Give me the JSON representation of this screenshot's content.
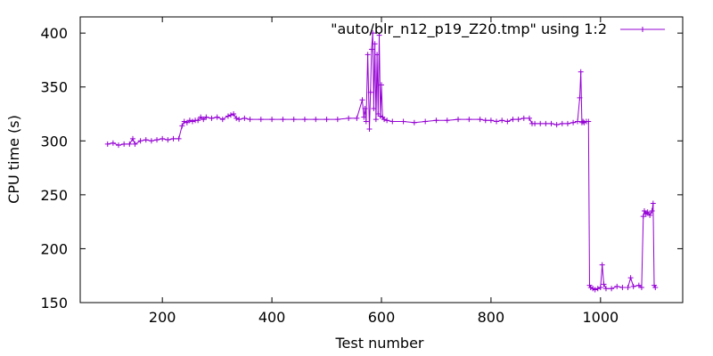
{
  "chart_data": {
    "type": "line",
    "title": "",
    "xlabel": "Test number",
    "ylabel": "CPU time (s)",
    "xlim": [
      50,
      1150
    ],
    "ylim": [
      150,
      415
    ],
    "xticks": [
      200,
      400,
      600,
      800,
      1000
    ],
    "yticks": [
      150,
      200,
      250,
      300,
      350,
      400
    ],
    "grid": false,
    "legend_position": "top-right",
    "colors": {
      "series": "#9400d3",
      "axis": "#000000"
    },
    "series": [
      {
        "name": "\"auto/blr_n12_p19_Z20.tmp\" using 1:2",
        "x": [
          100,
          110,
          120,
          130,
          140,
          146,
          150,
          160,
          170,
          180,
          190,
          200,
          210,
          220,
          230,
          236,
          240,
          245,
          250,
          255,
          260,
          265,
          270,
          275,
          280,
          290,
          300,
          310,
          320,
          325,
          330,
          335,
          340,
          350,
          360,
          380,
          400,
          420,
          440,
          460,
          480,
          500,
          520,
          540,
          555,
          565,
          568,
          570,
          572,
          575,
          578,
          580,
          582,
          584,
          586,
          588,
          590,
          592,
          594,
          596,
          598,
          600,
          602,
          605,
          610,
          620,
          640,
          660,
          680,
          700,
          720,
          740,
          760,
          780,
          790,
          800,
          810,
          820,
          830,
          840,
          850,
          860,
          870,
          875,
          880,
          890,
          900,
          910,
          920,
          930,
          940,
          950,
          958,
          962,
          964,
          966,
          968,
          970,
          974,
          978,
          980,
          982,
          986,
          990,
          995,
          1000,
          1003,
          1006,
          1010,
          1020,
          1030,
          1040,
          1050,
          1055,
          1060,
          1070,
          1075,
          1078,
          1080,
          1083,
          1086,
          1090,
          1094,
          1096,
          1098,
          1100
        ],
        "y": [
          297,
          298,
          296,
          297,
          297,
          302,
          297,
          300,
          301,
          300,
          301,
          302,
          301,
          302,
          302,
          314,
          318,
          317,
          319,
          318,
          319,
          319,
          322,
          320,
          322,
          321,
          322,
          320,
          323,
          324,
          325,
          321,
          320,
          321,
          320,
          320,
          320,
          320,
          320,
          320,
          320,
          320,
          320,
          321,
          321,
          338,
          322,
          330,
          318,
          380,
          311,
          345,
          385,
          400,
          330,
          390,
          320,
          380,
          325,
          398,
          323,
          352,
          322,
          320,
          319,
          318,
          318,
          317,
          318,
          319,
          319,
          320,
          320,
          320,
          319,
          319,
          318,
          319,
          318,
          320,
          320,
          321,
          321,
          316,
          316,
          316,
          316,
          316,
          315,
          316,
          316,
          317,
          318,
          340,
          364,
          317,
          318,
          317,
          318,
          318,
          166,
          164,
          163,
          162,
          163,
          164,
          185,
          167,
          163,
          163,
          165,
          164,
          164,
          173,
          165,
          166,
          164,
          230,
          235,
          232,
          234,
          231,
          235,
          242,
          166,
          164
        ]
      }
    ]
  }
}
